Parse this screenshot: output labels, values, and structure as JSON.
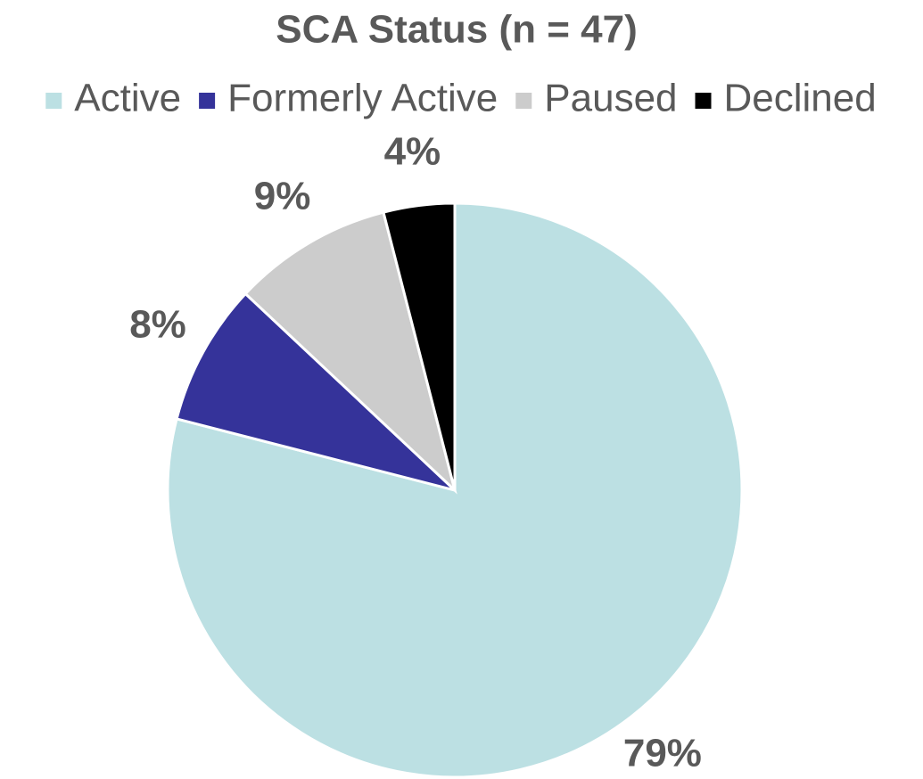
{
  "chart_data": {
    "type": "pie",
    "title": "SCA Status (n = 47)",
    "categories": [
      "Active",
      "Formerly Active",
      "Paused",
      "Declined"
    ],
    "values": [
      79,
      8,
      9,
      4
    ],
    "value_labels": [
      "79%",
      "8%",
      "9%",
      "4%"
    ],
    "colors": [
      "#bce0e3",
      "#35339a",
      "#cccccc",
      "#000000"
    ],
    "legend": "top"
  }
}
